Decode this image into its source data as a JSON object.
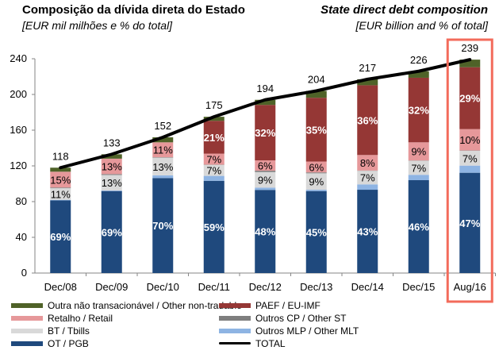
{
  "header": {
    "title_pt": "Composição da dívida direta do Estado",
    "subtitle_pt": "[EUR mil milhões e % do total]",
    "title_en": "State direct debt composition",
    "subtitle_en": "[EUR billion and % of total]"
  },
  "colors": {
    "OT": "#1f497d",
    "OutrosMLP": "#8eb4e3",
    "BT": "#d9d9d9",
    "OutrosCP": "#7f7f7f",
    "Retalho": "#e6989a",
    "PAEF": "#953735",
    "Outra": "#4f6228",
    "total_line": "#000000",
    "highlight": "#f36b5b"
  },
  "legend": [
    {
      "key": "Outra",
      "label": "Outra não transacionável / Other non-tradable"
    },
    {
      "key": "Retalho",
      "label": "Retalho / Retail"
    },
    {
      "key": "BT",
      "label": "BT / Tbills"
    },
    {
      "key": "OT",
      "label": "OT / PGB"
    },
    {
      "key": "PAEF",
      "label": "PAEF / EU-IMF"
    },
    {
      "key": "OutrosCP",
      "label": "Outros CP / Other ST"
    },
    {
      "key": "OutrosMLP",
      "label": "Outros MLP / Other MLT"
    },
    {
      "key": "total",
      "label": "TOTAL"
    }
  ],
  "chart_data": {
    "type": "bar",
    "stacked": true,
    "title": "Composição da dívida direta do Estado / State direct debt composition",
    "ylabel": "EUR billion",
    "ylim": [
      0,
      240
    ],
    "yticks": [
      0,
      40,
      80,
      120,
      160,
      200,
      240
    ],
    "categories": [
      "Dec/08",
      "Dec/09",
      "Dec/10",
      "Dec/11",
      "Dec/12",
      "Dec/13",
      "Dec/14",
      "Dec/15",
      "Aug/16"
    ],
    "highlighted_category": "Aug/16",
    "series": [
      {
        "key": "OT",
        "name": "OT / PGB",
        "values": [
          81.4,
          91.8,
          106.4,
          103.3,
          93.1,
          91.8,
          93.3,
          104.0,
          112.3
        ],
        "labels": [
          "69%",
          "69%",
          "70%",
          "59%",
          "48%",
          "45%",
          "43%",
          "46%",
          "47%"
        ]
      },
      {
        "key": "OutrosMLP",
        "name": "Outros MLP / Other MLT",
        "values": [
          0.6,
          0.7,
          3.0,
          5.5,
          2.5,
          1.5,
          6.0,
          6.0,
          8.0
        ],
        "labels": [
          "",
          "",
          "",
          "",
          "",
          "",
          "",
          "",
          ""
        ]
      },
      {
        "key": "BT",
        "name": "BT / Tbills",
        "values": [
          13.0,
          17.3,
          19.8,
          12.3,
          17.5,
          18.4,
          15.2,
          15.8,
          16.7
        ],
        "labels": [
          "11%",
          "13%",
          "13%",
          "7%",
          "9%",
          "9%",
          "7%",
          "7%",
          "7%"
        ]
      },
      {
        "key": "OutrosCP",
        "name": "Outros CP / Other ST",
        "values": [
          0.8,
          1.0,
          0.5,
          0.3,
          1.5,
          1.0,
          0.3,
          0.3,
          0.3
        ],
        "labels": [
          "",
          "",
          "",
          "",
          "",
          "",
          "",
          "",
          ""
        ]
      },
      {
        "key": "Retalho",
        "name": "Retalho / Retail",
        "values": [
          17.7,
          17.3,
          16.7,
          12.3,
          11.6,
          12.2,
          17.4,
          20.3,
          23.9
        ],
        "labels": [
          "15%",
          "13%",
          "11%",
          "7%",
          "6%",
          "6%",
          "8%",
          "9%",
          "10%"
        ]
      },
      {
        "key": "PAEF",
        "name": "PAEF / EU-IMF",
        "values": [
          0,
          0,
          0,
          36.8,
          62.1,
          71.4,
          78.1,
          72.3,
          69.3
        ],
        "labels": [
          "",
          "",
          "",
          "21%",
          "32%",
          "35%",
          "36%",
          "32%",
          "29%"
        ]
      },
      {
        "key": "Outra",
        "name": "Outra não transacionável / Other non-tradable",
        "values": [
          4.5,
          4.9,
          5.6,
          4.5,
          5.7,
          7.7,
          6.7,
          7.3,
          8.5
        ],
        "labels": [
          "",
          "",
          "",
          "",
          "",
          "",
          "",
          "",
          ""
        ]
      }
    ],
    "total": {
      "name": "TOTAL",
      "values": [
        118,
        133,
        152,
        175,
        194,
        204,
        217,
        226,
        239
      ]
    },
    "legend_position": "bottom",
    "grid": false
  }
}
